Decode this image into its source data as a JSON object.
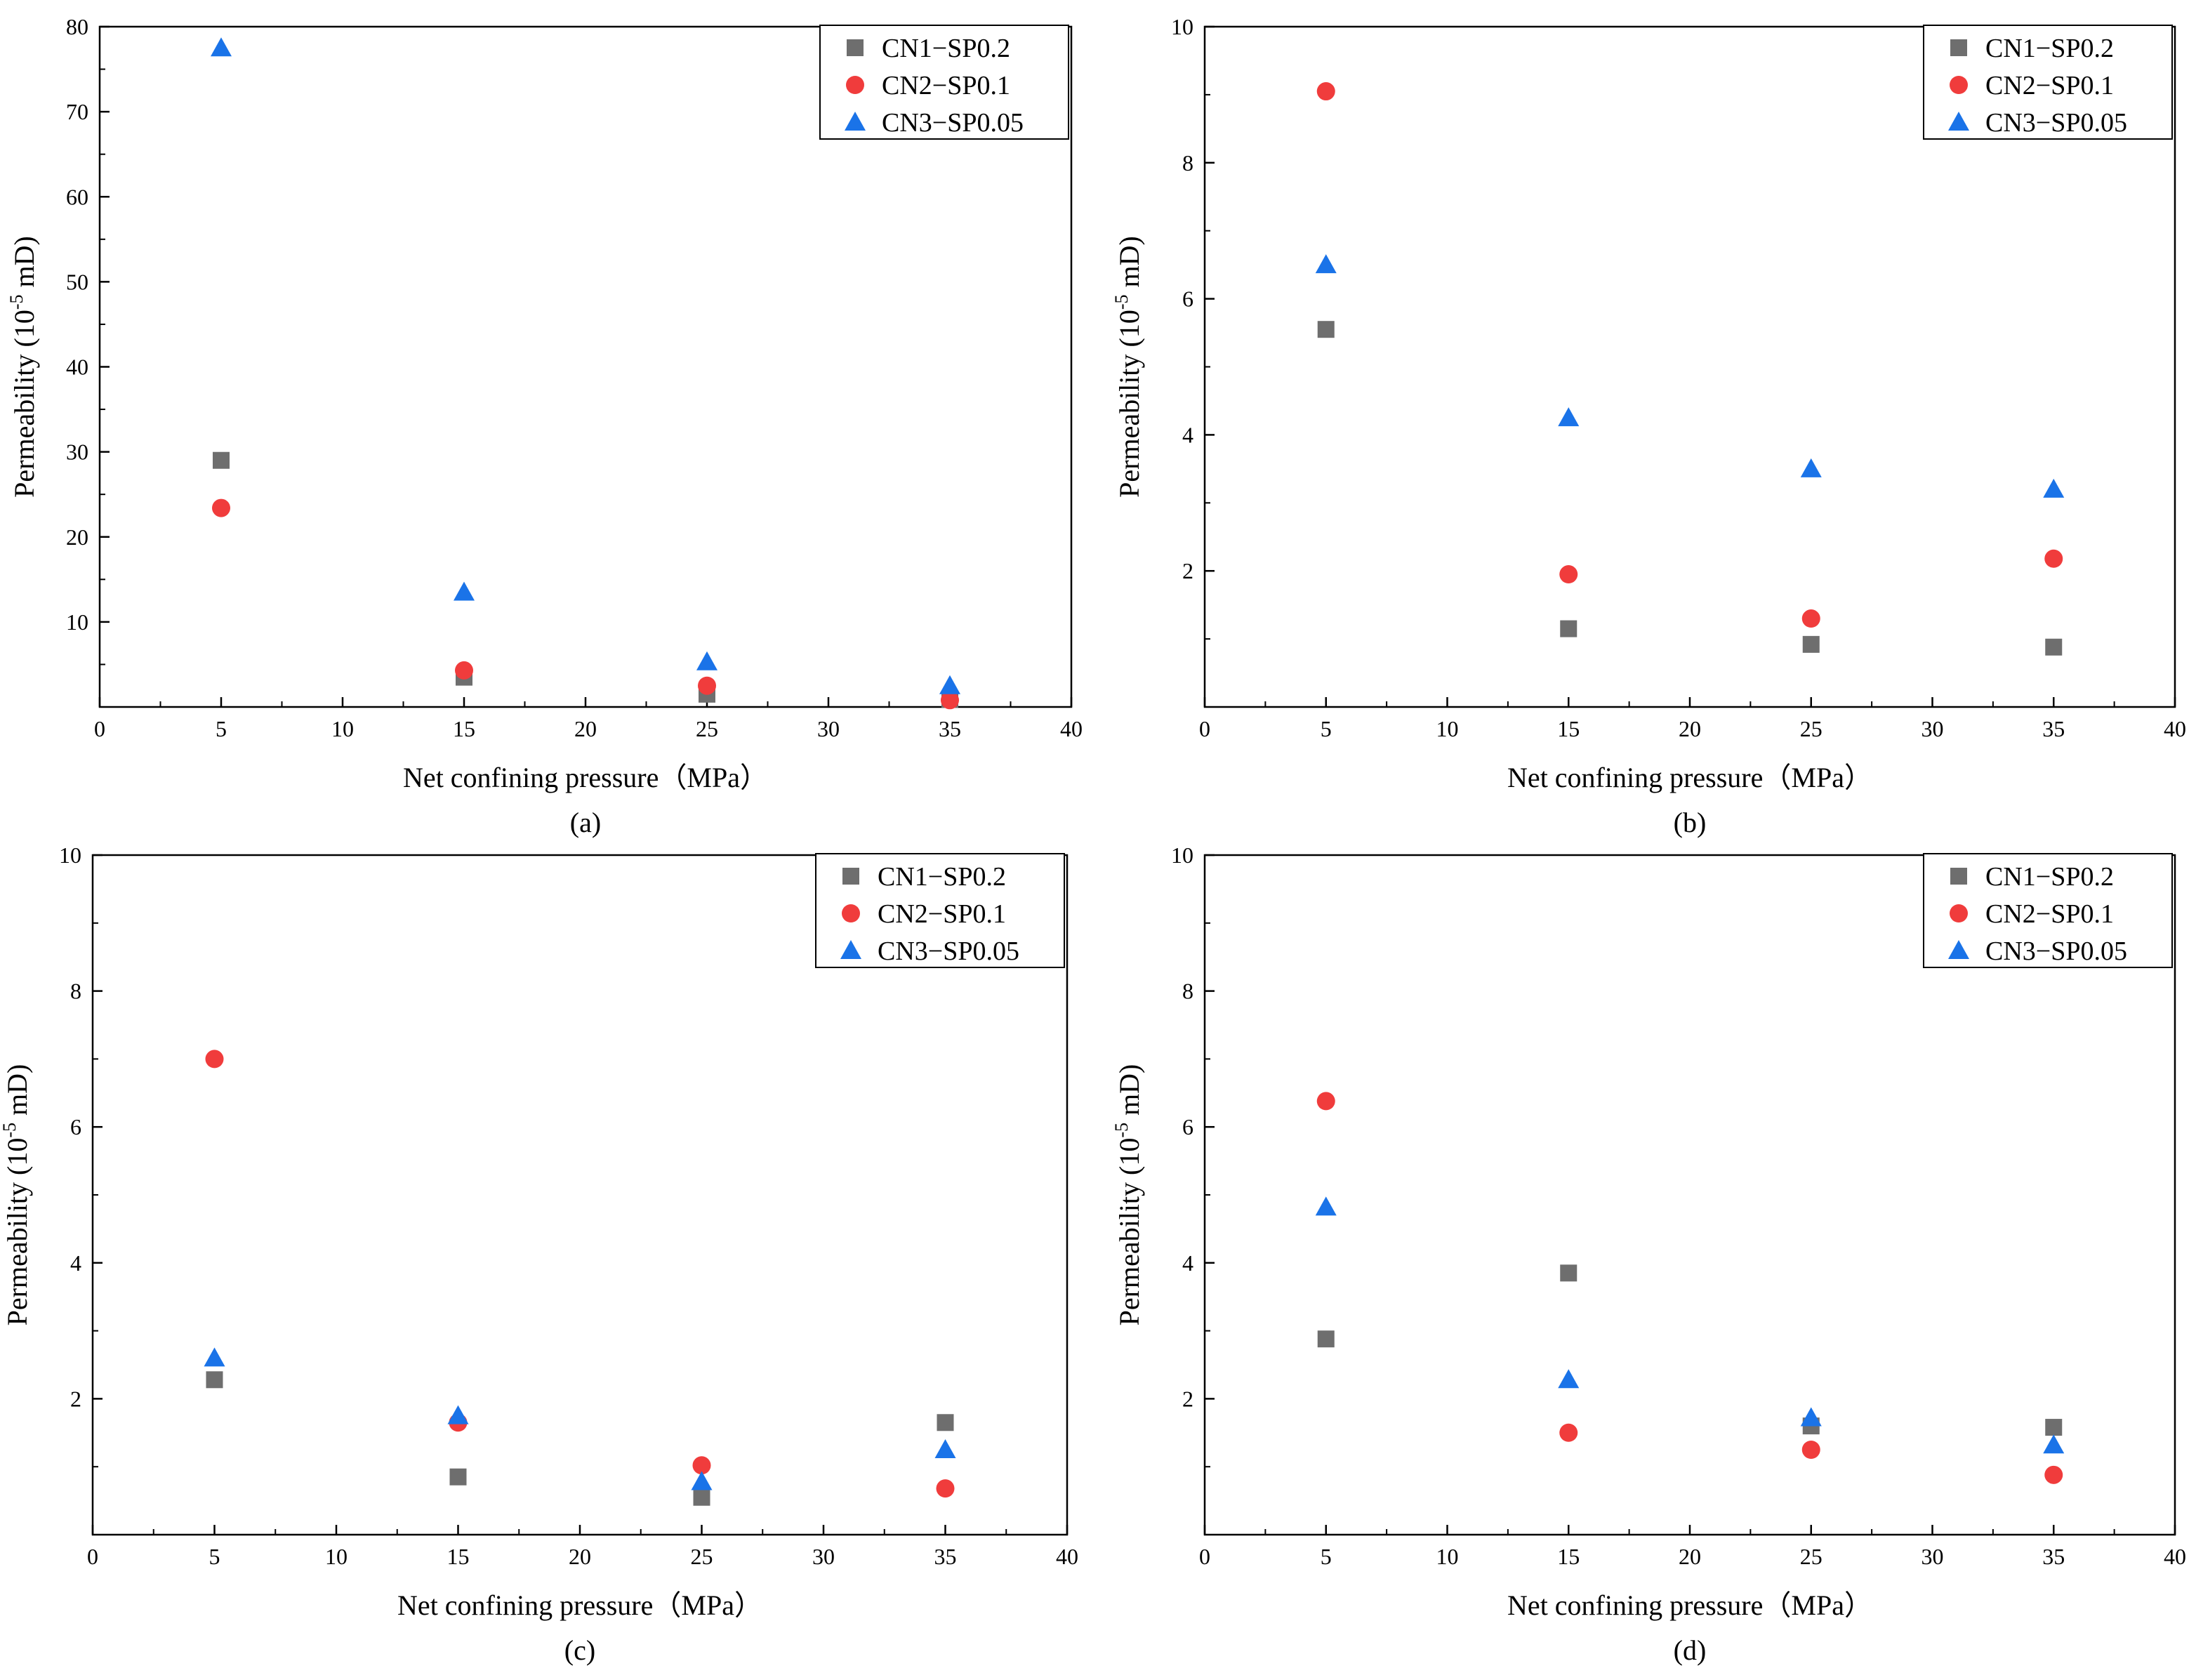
{
  "figure": {
    "colors": {
      "square": "#6e6e6e",
      "circle": "#f03c3c",
      "triangle": "#1a73e8"
    }
  },
  "chart_data": [
    {
      "type": "scatter",
      "caption": "(a)",
      "title": "",
      "xlabel": "Net confining pressure（MPa）",
      "ylabel_main": "Permeability (10",
      "ylabel_exp": "-5",
      "ylabel_tail": " mD)",
      "xlim": [
        0,
        40
      ],
      "ylim": [
        0,
        80
      ],
      "xticks": [
        0,
        5,
        10,
        15,
        20,
        25,
        30,
        35,
        40
      ],
      "yticks": [
        10,
        20,
        30,
        40,
        50,
        60,
        70,
        80
      ],
      "x": [
        5,
        15,
        25,
        35
      ],
      "legend_position": "top-right",
      "series": [
        {
          "name": "CN1−SP0.2",
          "marker": "square",
          "values": [
            29.0,
            3.5,
            1.5,
            0.9
          ]
        },
        {
          "name": "CN2−SP0.1",
          "marker": "circle",
          "values": [
            23.4,
            4.3,
            2.5,
            0.8
          ]
        },
        {
          "name": "CN3−SP0.05",
          "marker": "triangle",
          "values": [
            77.5,
            13.5,
            5.3,
            2.5
          ]
        }
      ]
    },
    {
      "type": "scatter",
      "caption": "(b)",
      "title": "",
      "xlabel": "Net confining pressure（MPa）",
      "ylabel_main": "Permeability (10",
      "ylabel_exp": "-5",
      "ylabel_tail": " mD)",
      "xlim": [
        0,
        40
      ],
      "ylim": [
        0,
        10
      ],
      "xticks": [
        0,
        5,
        10,
        15,
        20,
        25,
        30,
        35,
        40
      ],
      "yticks": [
        2,
        4,
        6,
        8,
        10
      ],
      "x": [
        5,
        15,
        25,
        35
      ],
      "legend_position": "top-right",
      "series": [
        {
          "name": "CN1−SP0.2",
          "marker": "square",
          "values": [
            5.55,
            1.15,
            0.92,
            0.88
          ]
        },
        {
          "name": "CN2−SP0.1",
          "marker": "circle",
          "values": [
            9.05,
            1.95,
            1.3,
            2.18
          ]
        },
        {
          "name": "CN3−SP0.05",
          "marker": "triangle",
          "values": [
            6.5,
            4.25,
            3.5,
            3.2
          ]
        }
      ]
    },
    {
      "type": "scatter",
      "caption": "(c)",
      "title": "",
      "xlabel": "Net confining pressure（MPa）",
      "ylabel_main": "Permeability (10",
      "ylabel_exp": "-5",
      "ylabel_tail": " mD)",
      "xlim": [
        0,
        40
      ],
      "ylim": [
        0,
        10
      ],
      "xticks": [
        0,
        5,
        10,
        15,
        20,
        25,
        30,
        35,
        40
      ],
      "yticks": [
        2,
        4,
        6,
        8,
        10
      ],
      "x": [
        5,
        15,
        25,
        35
      ],
      "legend_position": "top-right",
      "series": [
        {
          "name": "CN1−SP0.2",
          "marker": "square",
          "values": [
            2.28,
            0.85,
            0.55,
            1.65
          ]
        },
        {
          "name": "CN2−SP0.1",
          "marker": "circle",
          "values": [
            7.0,
            1.65,
            1.02,
            0.68
          ]
        },
        {
          "name": "CN3−SP0.05",
          "marker": "triangle",
          "values": [
            2.6,
            1.75,
            0.78,
            1.25
          ]
        }
      ]
    },
    {
      "type": "scatter",
      "caption": "(d)",
      "title": "",
      "xlabel": "Net confining pressure（MPa）",
      "ylabel_main": "Permeability (10",
      "ylabel_exp": "-5",
      "ylabel_tail": " mD)",
      "xlim": [
        0,
        40
      ],
      "ylim": [
        0,
        10
      ],
      "xticks": [
        0,
        5,
        10,
        15,
        20,
        25,
        30,
        35,
        40
      ],
      "yticks": [
        2,
        4,
        6,
        8,
        10
      ],
      "x": [
        5,
        15,
        25,
        35
      ],
      "legend_position": "top-right",
      "series": [
        {
          "name": "CN1−SP0.2",
          "marker": "square",
          "values": [
            2.88,
            3.85,
            1.6,
            1.58
          ]
        },
        {
          "name": "CN2−SP0.1",
          "marker": "circle",
          "values": [
            6.38,
            1.5,
            1.25,
            0.88
          ]
        },
        {
          "name": "CN3−SP0.05",
          "marker": "triangle",
          "values": [
            4.82,
            2.28,
            1.72,
            1.32
          ]
        }
      ]
    }
  ]
}
